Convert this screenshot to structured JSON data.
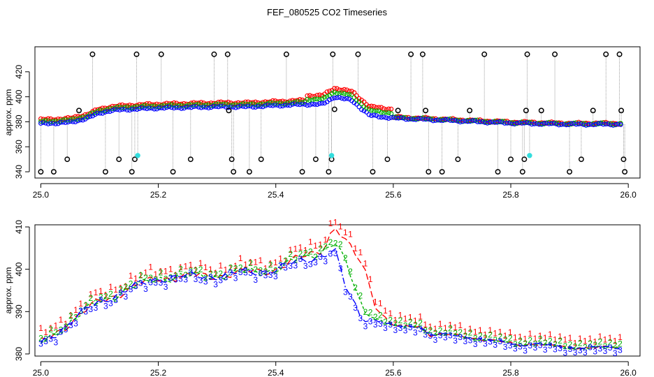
{
  "title": "FEF_080525  CO2 Timeseries",
  "chart_data": [
    {
      "type": "scatter",
      "xlabel": "",
      "ylabel": "approx. ppm",
      "xlim": [
        24.99,
        26.02
      ],
      "ylim": [
        335,
        440
      ],
      "x_ticks": [
        25.0,
        25.2,
        25.4,
        25.6,
        25.8,
        26.0
      ],
      "x_tick_labels": [
        "25.0",
        "25.2",
        "25.4",
        "25.6",
        "25.8",
        "26.0"
      ],
      "y_ticks": [
        340,
        360,
        380,
        400,
        420
      ],
      "y_tick_labels": [
        "340",
        "360",
        "380",
        "400",
        "420"
      ],
      "grid": false,
      "baseline": [
        [
          25.0,
          378.5
        ],
        [
          25.05,
          379.5
        ],
        [
          25.08,
          383
        ],
        [
          25.1,
          387
        ],
        [
          25.12,
          389
        ],
        [
          25.15,
          390
        ],
        [
          25.2,
          391
        ],
        [
          25.25,
          391.5
        ],
        [
          25.3,
          392
        ],
        [
          25.35,
          392
        ],
        [
          25.4,
          393
        ],
        [
          25.45,
          394
        ],
        [
          25.48,
          394
        ],
        [
          25.5,
          400
        ],
        [
          25.53,
          397
        ],
        [
          25.56,
          385
        ],
        [
          25.6,
          383
        ],
        [
          25.65,
          382
        ],
        [
          25.7,
          381
        ],
        [
          25.8,
          379
        ],
        [
          25.85,
          378.5
        ],
        [
          25.9,
          378
        ],
        [
          25.99,
          378
        ]
      ],
      "outliers_black": [
        [
          25.0,
          340
        ],
        [
          25.022,
          340
        ],
        [
          25.045,
          350
        ],
        [
          25.065,
          389
        ],
        [
          25.088,
          434
        ],
        [
          25.11,
          340
        ],
        [
          25.133,
          350
        ],
        [
          25.155,
          340
        ],
        [
          25.16,
          350
        ],
        [
          25.163,
          434
        ],
        [
          25.205,
          434
        ],
        [
          25.225,
          340
        ],
        [
          25.255,
          350
        ],
        [
          25.295,
          434
        ],
        [
          25.318,
          434
        ],
        [
          25.32,
          389
        ],
        [
          25.325,
          350
        ],
        [
          25.328,
          340
        ],
        [
          25.355,
          340
        ],
        [
          25.375,
          350
        ],
        [
          25.418,
          434
        ],
        [
          25.445,
          340
        ],
        [
          25.468,
          350
        ],
        [
          25.49,
          340
        ],
        [
          25.495,
          350
        ],
        [
          25.497,
          434
        ],
        [
          25.5,
          390
        ],
        [
          25.54,
          434
        ],
        [
          25.565,
          340
        ],
        [
          25.59,
          350
        ],
        [
          25.608,
          389
        ],
        [
          25.63,
          434
        ],
        [
          25.65,
          434
        ],
        [
          25.655,
          389
        ],
        [
          25.66,
          340
        ],
        [
          25.683,
          340
        ],
        [
          25.71,
          350
        ],
        [
          25.73,
          389
        ],
        [
          25.755,
          434
        ],
        [
          25.778,
          340
        ],
        [
          25.8,
          350
        ],
        [
          25.82,
          340
        ],
        [
          25.823,
          350
        ],
        [
          25.826,
          389
        ],
        [
          25.828,
          434
        ],
        [
          25.852,
          389
        ],
        [
          25.875,
          434
        ],
        [
          25.9,
          340
        ],
        [
          25.92,
          350
        ],
        [
          25.94,
          389
        ],
        [
          25.962,
          434
        ],
        [
          25.985,
          434
        ],
        [
          25.988,
          389
        ],
        [
          25.992,
          350
        ],
        [
          25.994,
          340
        ]
      ],
      "outliers_cyan": [
        [
          25.165,
          353
        ],
        [
          25.495,
          353
        ],
        [
          25.832,
          353
        ]
      ]
    },
    {
      "type": "line",
      "xlabel": "",
      "ylabel": "approx. ppm",
      "xlim": [
        24.99,
        26.02
      ],
      "ylim": [
        379.5,
        410.5
      ],
      "x_ticks": [
        25.0,
        25.2,
        25.4,
        25.6,
        25.8,
        26.0
      ],
      "x_tick_labels": [
        "25.0",
        "25.2",
        "25.4",
        "25.6",
        "25.8",
        "26.0"
      ],
      "y_ticks": [
        380,
        390,
        400,
        410
      ],
      "y_tick_labels": [
        "380",
        "390",
        "400",
        "410"
      ],
      "grid": false,
      "series": [
        {
          "name": "1",
          "color": "#ff0000",
          "dash": "9,4",
          "offset": 1.8,
          "x": [
            25.0,
            25.1,
            25.2,
            25.3,
            25.4,
            25.48,
            25.5,
            25.52,
            25.55,
            25.57,
            25.6,
            25.65,
            25.66,
            25.7,
            25.8,
            25.82,
            25.83,
            25.9,
            25.99
          ],
          "values": [
            382.5,
            392.5,
            398,
            398.5,
            400,
            405,
            410,
            406,
            401,
            391,
            386.5,
            386.5,
            384.5,
            384.5,
            382.5,
            382,
            382.5,
            381.5,
            381.5
          ]
        },
        {
          "name": "2",
          "color": "#00b000",
          "dash": "4,3",
          "offset": 0.6,
          "x": [
            25.0,
            25.1,
            25.2,
            25.3,
            25.4,
            25.48,
            25.5,
            25.52,
            25.55,
            25.57,
            25.6,
            25.65,
            25.66,
            25.7,
            25.8,
            25.82,
            25.83,
            25.9,
            25.99
          ],
          "values": [
            382.5,
            392.5,
            398,
            398.5,
            400,
            404.5,
            406.5,
            401,
            390,
            388.5,
            386.5,
            386.5,
            384.5,
            384.5,
            382.5,
            382,
            382.5,
            381.5,
            381.5
          ]
        },
        {
          "name": "3",
          "color": "#0000ff",
          "dash": "9,3,2,3",
          "offset": -0.8,
          "x": [
            25.0,
            25.1,
            25.2,
            25.3,
            25.4,
            25.48,
            25.5,
            25.52,
            25.55,
            25.57,
            25.6,
            25.65,
            25.66,
            25.7,
            25.8,
            25.82,
            25.83,
            25.9,
            25.99
          ],
          "values": [
            382.5,
            392.5,
            398,
            398.5,
            400,
            403.5,
            404.5,
            395,
            388,
            388,
            386.5,
            386.5,
            384.5,
            384.5,
            382.5,
            382,
            382.5,
            381.5,
            381.5
          ]
        }
      ]
    }
  ]
}
